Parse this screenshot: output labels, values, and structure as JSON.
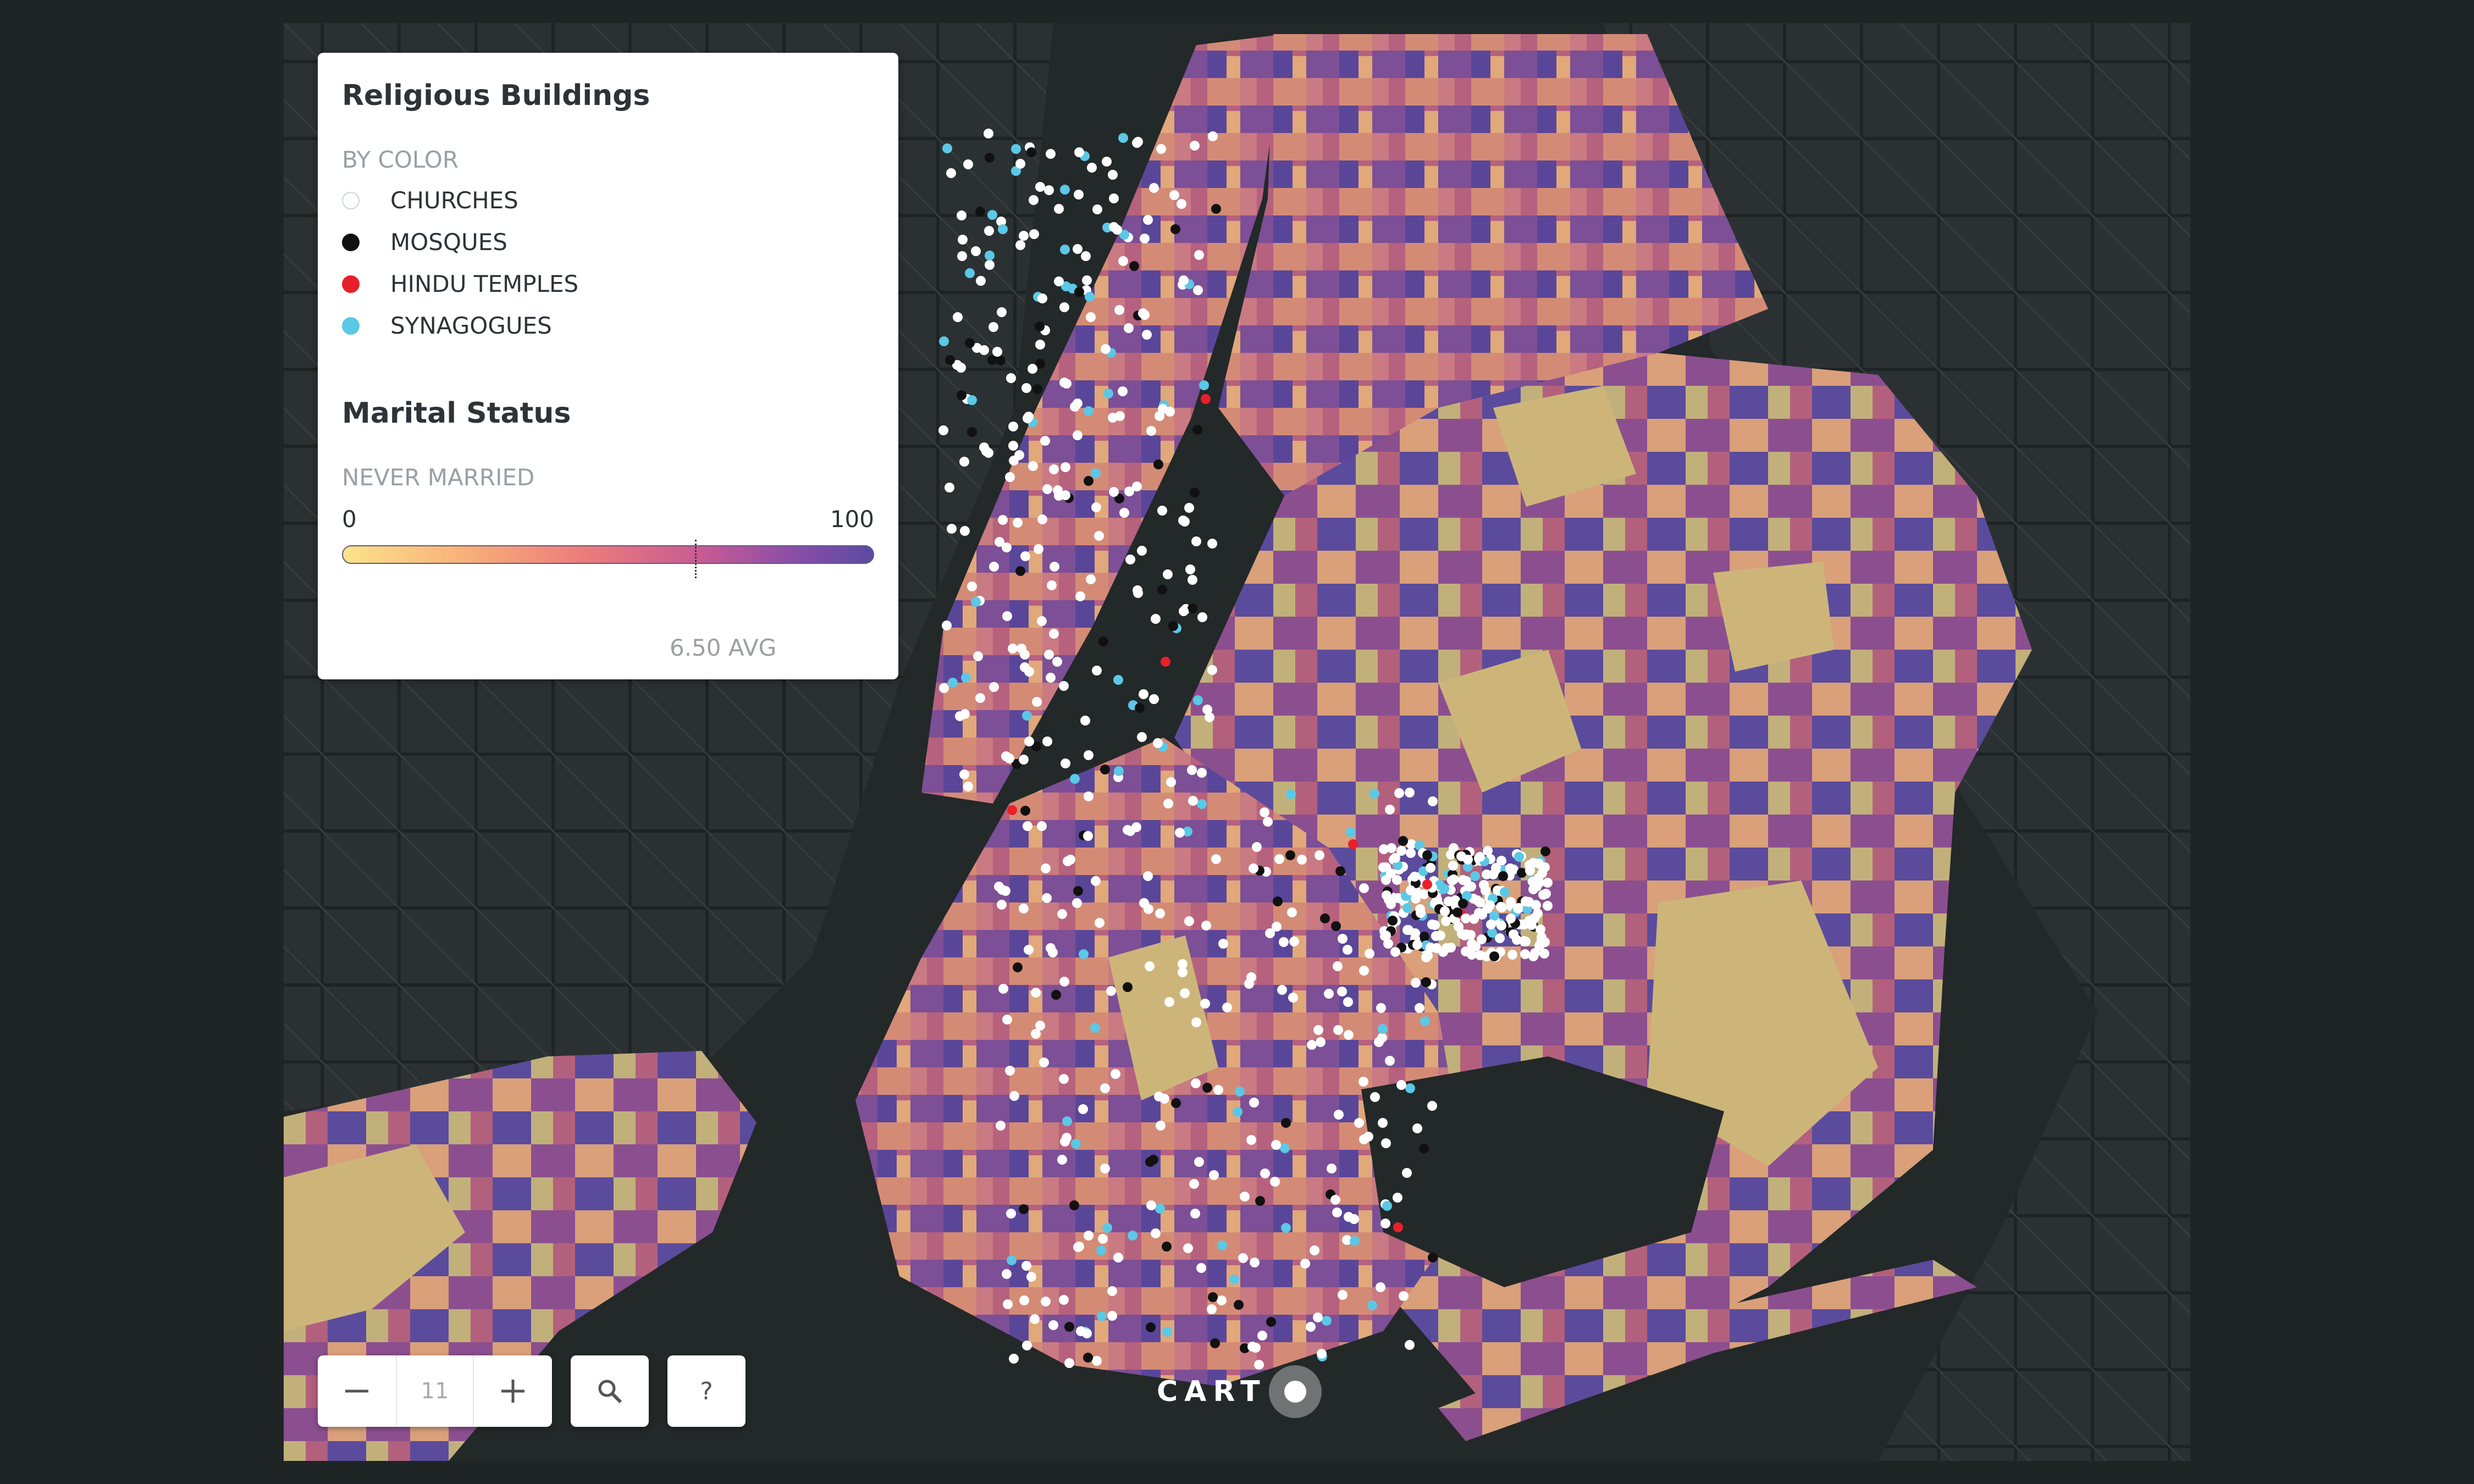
{
  "legend": {
    "religious_title": "Religious Buildings",
    "by_color": "BY COLOR",
    "categories": [
      {
        "label": "CHURCHES",
        "color": "#ffffff",
        "icon": "circle-outline-icon"
      },
      {
        "label": "MOSQUES",
        "color": "#111111",
        "icon": "circle-icon"
      },
      {
        "label": "HINDU TEMPLES",
        "color": "#e8202a",
        "icon": "circle-icon"
      },
      {
        "label": "SYNAGOGUES",
        "color": "#5bc8e6",
        "icon": "circle-icon"
      }
    ],
    "marital_title": "Marital Status",
    "never_married": "NEVER MARRIED",
    "ramp_min": "0",
    "ramp_max": "100",
    "avg_label": "6.50 AVG",
    "ramp_colors": [
      "#fce38a",
      "#f8b27a",
      "#ec7d7a",
      "#c75a93",
      "#8a4ea8",
      "#5c4aa3"
    ]
  },
  "zoom": {
    "level": "11",
    "zoom_out_icon": "minus-icon",
    "zoom_in_icon": "plus-icon",
    "search_icon": "search-icon",
    "help_label": "?"
  },
  "attribution": {
    "brand": "CART"
  },
  "colors": {
    "background": "#1f2425",
    "water": "#232829",
    "land_dark": "#2e3536",
    "parks": "#cdb57a"
  }
}
